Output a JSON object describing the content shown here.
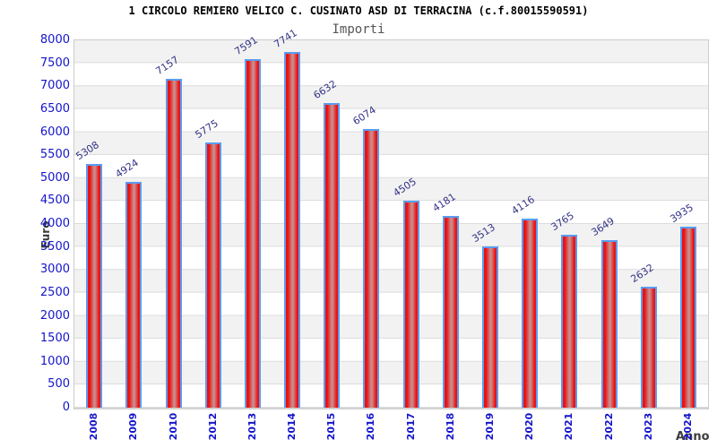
{
  "chart_data": {
    "type": "bar",
    "title": "1 CIRCOLO REMIERO VELICO C. CUSINATO ASD DI TERRACINA (c.f.80015590591)",
    "subtitle": "Importi",
    "xlabel": "Anno",
    "ylabel": "Euro",
    "categories": [
      "2008",
      "2009",
      "2010",
      "2012",
      "2013",
      "2014",
      "2015",
      "2016",
      "2017",
      "2018",
      "2019",
      "2020",
      "2021",
      "2022",
      "2023",
      "2024"
    ],
    "values": [
      5308,
      4924,
      7157,
      5775,
      7591,
      7741,
      6632,
      6074,
      4505,
      4181,
      3513,
      4116,
      3765,
      3649,
      2632,
      3935
    ],
    "ylim": [
      0,
      8000
    ],
    "ytick_step": 500,
    "yticks": [
      0,
      500,
      1000,
      1500,
      2000,
      2500,
      3000,
      3500,
      4000,
      4500,
      5000,
      5500,
      6000,
      6500,
      7000,
      7500,
      8000
    ],
    "grid": "horizontal alternating bands",
    "legend_position": "none",
    "value_labels_rotation_deg": -33,
    "x_tick_rotation_deg": -90,
    "colors": {
      "bar_fill": "#ec1111",
      "bar_fill_center": "#c98c8c",
      "bar_border": "#5a9cf0",
      "tick_label": "#1414cc",
      "value_label": "#333388",
      "band_fill": "#f2f2f2",
      "gridline": "#dcdcdc",
      "plot_border": "#cccccc",
      "axis_title": "#3c3c3c",
      "title_color": "#000000",
      "subtitle_color": "#555555"
    }
  }
}
